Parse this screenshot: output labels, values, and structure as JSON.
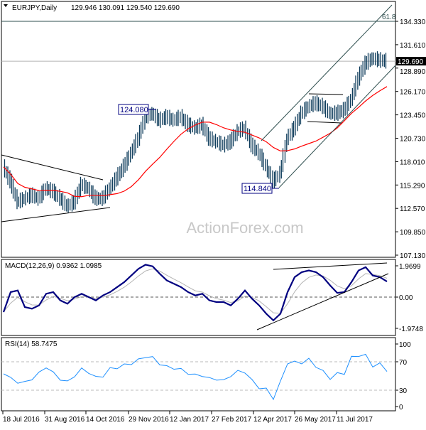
{
  "header": {
    "symbol": "EURJPY,Daily",
    "ohlc": "129.946 130.091 129.540 129.690"
  },
  "watermark": "ActionForex.com",
  "colors": {
    "bars": "#0f3d5c",
    "ma": "#ff0000",
    "macd": "#000080",
    "signal": "#b4b4b4",
    "rsi": "#1e90ff",
    "channel": "#2f4f4f"
  },
  "chart_data": [
    {
      "type": "ohlc",
      "title": "EURJPY,Daily",
      "y_ticks": [
        "134.330",
        "131.610",
        "128.890",
        "126.170",
        "123.450",
        "120.730",
        "118.010",
        "115.290",
        "112.570",
        "109.850",
        "107.130"
      ],
      "ylim": [
        107.13,
        134.33
      ],
      "current_price": "129.690",
      "x_ticks": [
        "18 Jul 2016",
        "31 Aug 2016",
        "14 Oct 2016",
        "29 Nov 2016",
        "12 Jan 2017",
        "27 Feb 2017",
        "12 Apr 2017",
        "26 May 2017",
        "11 Jul 2017"
      ],
      "closes": [
        117.4,
        115.7,
        113.3,
        113.7,
        114.1,
        113.7,
        114.9,
        114.5,
        113.7,
        112.8,
        113.3,
        115.3,
        114.9,
        113.7,
        113.7,
        114.9,
        116.1,
        117.4,
        119.0,
        120.7,
        123.2,
        123.6,
        122.8,
        123.2,
        122.8,
        123.2,
        122.3,
        121.9,
        122.3,
        120.7,
        120.3,
        119.9,
        120.3,
        121.5,
        121.9,
        119.9,
        119.0,
        117.4,
        115.7,
        116.6,
        120.7,
        121.9,
        123.6,
        124.4,
        124.8,
        124.4,
        123.6,
        123.6,
        124.0,
        125.2,
        127.7,
        129.4,
        130.0,
        129.8,
        129.69
      ],
      "annotations": {
        "high_label": "124.080",
        "low_label": "114.840",
        "fib_label": "61.8"
      }
    },
    {
      "type": "line",
      "title": "MACD(12,26,9) 0.9362 1.0985",
      "y_ticks": [
        "1.9699",
        "0.00",
        "-1.9748"
      ],
      "ylim": [
        -1.9748,
        1.9699
      ],
      "macd": [
        -0.9,
        0.3,
        0.4,
        -0.6,
        -0.7,
        -0.5,
        0.2,
        0.3,
        -0.2,
        -0.4,
        0.0,
        0.2,
        0.0,
        -0.2,
        0.1,
        0.3,
        0.6,
        0.9,
        1.3,
        1.7,
        1.95,
        1.85,
        1.4,
        1.0,
        0.8,
        0.6,
        0.3,
        0.1,
        0.2,
        -0.2,
        -0.3,
        -0.3,
        -0.5,
        -0.1,
        0.4,
        -0.1,
        -0.5,
        -1.0,
        -1.4,
        -1.0,
        0.3,
        1.2,
        1.5,
        1.6,
        1.5,
        1.2,
        0.7,
        0.25,
        0.3,
        0.9,
        1.6,
        1.8,
        1.3,
        1.2,
        0.94
      ]
    },
    {
      "type": "line",
      "title": "RSI(14) 58.7475",
      "y_ticks": [
        "100",
        "70",
        "30",
        "0"
      ],
      "ylim": [
        0,
        100
      ],
      "levels": [
        70,
        30
      ],
      "values": [
        53,
        48,
        40,
        42,
        45,
        55,
        62,
        55,
        45,
        42,
        50,
        60,
        55,
        48,
        50,
        60,
        62,
        65,
        68,
        72,
        78,
        75,
        68,
        62,
        62,
        58,
        55,
        50,
        52,
        45,
        47,
        42,
        52,
        55,
        57,
        42,
        35,
        30,
        20,
        40,
        70,
        68,
        70,
        72,
        65,
        55,
        48,
        52,
        55,
        75,
        80,
        78,
        65,
        66,
        58.7
      ]
    }
  ]
}
